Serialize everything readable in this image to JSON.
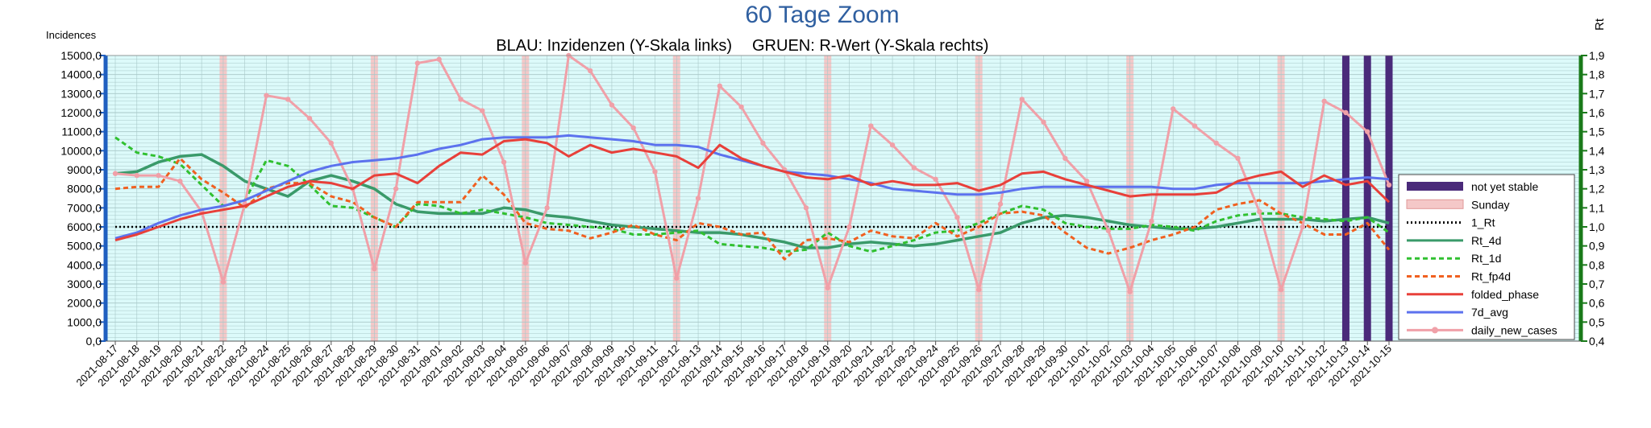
{
  "chart_data": {
    "type": "line",
    "title": "60 Tage Zoom",
    "subtitle_left": "BLAU: Inzidenzen (Y-Skala links)",
    "subtitle_right": "GRUEN: R-Wert (Y-Skala rechts)",
    "ylabel_left": "Incidences",
    "ylabel_right": "Rt",
    "ylim_left": [
      0,
      15000
    ],
    "ylim_right": [
      0.4,
      1.9
    ],
    "yticks_left": [
      "0,0",
      "1000,0",
      "2000,0",
      "3000,0",
      "4000,0",
      "5000,0",
      "6000,0",
      "7000,0",
      "8000,0",
      "9000,0",
      "10000,0",
      "11000,0",
      "12000,0",
      "13000,0",
      "14000,0",
      "15000,0"
    ],
    "yticks_right": [
      "0,4",
      "0,5",
      "0,6",
      "0,7",
      "0,8",
      "0,9",
      "1,0",
      "1,1",
      "1,2",
      "1,3",
      "1,4",
      "1,5",
      "1,6",
      "1,7",
      "1,8",
      "1,9"
    ],
    "grid": true,
    "legend_position": "right",
    "categories": [
      "2021-08-17",
      "2021-08-18",
      "2021-08-19",
      "2021-08-20",
      "2021-08-21",
      "2021-08-22",
      "2021-08-23",
      "2021-08-24",
      "2021-08-25",
      "2021-08-26",
      "2021-08-27",
      "2021-08-28",
      "2021-08-29",
      "2021-08-30",
      "2021-08-31",
      "2021-09-01",
      "2021-09-02",
      "2021-09-03",
      "2021-09-04",
      "2021-09-05",
      "2021-09-06",
      "2021-09-07",
      "2021-09-08",
      "2021-09-09",
      "2021-09-10",
      "2021-09-11",
      "2021-09-12",
      "2021-09-13",
      "2021-09-14",
      "2021-09-15",
      "2021-09-16",
      "2021-09-17",
      "2021-09-18",
      "2021-09-19",
      "2021-09-20",
      "2021-09-21",
      "2021-09-22",
      "2021-09-23",
      "2021-09-24",
      "2021-09-25",
      "2021-09-26",
      "2021-09-27",
      "2021-09-28",
      "2021-09-29",
      "2021-09-30",
      "2021-10-01",
      "2021-10-02",
      "2021-10-03",
      "2021-10-04",
      "2021-10-05",
      "2021-10-06",
      "2021-10-07",
      "2021-10-08",
      "2021-10-09",
      "2021-10-10",
      "2021-10-11",
      "2021-10-12",
      "2021-10-13",
      "2021-10-14",
      "2021-10-15"
    ],
    "sundays": [
      "2021-08-22",
      "2021-08-29",
      "2021-09-05",
      "2021-09-12",
      "2021-09-19",
      "2021-09-26",
      "2021-10-03",
      "2021-10-10"
    ],
    "not_yet_stable": [
      "2021-10-13",
      "2021-10-14",
      "2021-10-15"
    ],
    "series": [
      {
        "name": "daily_new_cases",
        "axis": "left",
        "color": "#f0a0a8",
        "style": "solid-marker",
        "values": [
          8800,
          8700,
          8700,
          8400,
          6800,
          3100,
          7200,
          12900,
          12700,
          11700,
          10400,
          8000,
          3800,
          8000,
          14600,
          14800,
          12700,
          12100,
          9400,
          4100,
          7000,
          15000,
          14200,
          12400,
          11200,
          8900,
          3300,
          7500,
          13400,
          12300,
          10400,
          9000,
          7000,
          2800,
          6000,
          11300,
          10300,
          9100,
          8500,
          6500,
          2700,
          7200,
          12700,
          11500,
          9600,
          8400,
          5800,
          2600,
          6300,
          12200,
          11300,
          10400,
          9600,
          6800,
          2700,
          6000,
          12600,
          12000,
          11000,
          8200
        ]
      },
      {
        "name": "7d_avg",
        "axis": "left",
        "color": "#5c72ee",
        "style": "solid",
        "values": [
          5400,
          5700,
          6200,
          6600,
          6900,
          7100,
          7400,
          7900,
          8400,
          8900,
          9200,
          9400,
          9500,
          9600,
          9800,
          10100,
          10300,
          10600,
          10700,
          10700,
          10700,
          10800,
          10700,
          10600,
          10500,
          10300,
          10300,
          10200,
          9800,
          9500,
          9200,
          8900,
          8800,
          8700,
          8500,
          8300,
          8000,
          7900,
          7800,
          7700,
          7700,
          7800,
          8000,
          8100,
          8100,
          8100,
          8100,
          8100,
          8100,
          8000,
          8000,
          8200,
          8300,
          8300,
          8300,
          8300,
          8400,
          8500,
          8600,
          8500
        ]
      },
      {
        "name": "folded_phase",
        "axis": "left",
        "color": "#e8403a",
        "style": "solid",
        "values": [
          5300,
          5600,
          6000,
          6400,
          6700,
          6900,
          7100,
          7600,
          8100,
          8400,
          8300,
          8000,
          8700,
          8800,
          8300,
          9200,
          9900,
          9800,
          10500,
          10600,
          10400,
          9700,
          10300,
          9900,
          10100,
          9900,
          9700,
          9100,
          10300,
          9600,
          9200,
          8900,
          8600,
          8500,
          8700,
          8200,
          8400,
          8200,
          8200,
          8300,
          7900,
          8200,
          8800,
          8900,
          8500,
          8200,
          7900,
          7600,
          7700,
          7700,
          7700,
          7800,
          8400,
          8700,
          8900,
          8100,
          8700,
          8200,
          8400,
          7300
        ]
      },
      {
        "name": "Rt_4d",
        "axis": "right",
        "color": "#3a9a6a",
        "style": "solid",
        "values": [
          1.28,
          1.29,
          1.34,
          1.37,
          1.38,
          1.32,
          1.24,
          1.2,
          1.16,
          1.24,
          1.27,
          1.24,
          1.2,
          1.12,
          1.08,
          1.07,
          1.07,
          1.07,
          1.1,
          1.09,
          1.06,
          1.05,
          1.03,
          1.01,
          1.0,
          0.99,
          0.98,
          0.97,
          0.97,
          0.96,
          0.94,
          0.92,
          0.89,
          0.89,
          0.91,
          0.92,
          0.91,
          0.9,
          0.91,
          0.93,
          0.95,
          0.97,
          1.02,
          1.05,
          1.06,
          1.05,
          1.03,
          1.01,
          1.0,
          0.99,
          0.99,
          1.0,
          1.02,
          1.04,
          1.04,
          1.04,
          1.03,
          1.04,
          1.05,
          1.02
        ]
      },
      {
        "name": "Rt_1d",
        "axis": "right",
        "color": "#30c030",
        "style": "dashed",
        "values": [
          1.47,
          1.39,
          1.37,
          1.33,
          1.22,
          1.11,
          1.14,
          1.35,
          1.32,
          1.22,
          1.11,
          1.1,
          1.05,
          1.0,
          1.12,
          1.11,
          1.07,
          1.09,
          1.07,
          1.05,
          1.02,
          1.01,
          1.0,
          0.99,
          0.96,
          0.96,
          0.97,
          0.98,
          0.91,
          0.9,
          0.89,
          0.87,
          0.88,
          0.97,
          0.9,
          0.87,
          0.9,
          0.93,
          0.97,
          0.98,
          1.02,
          1.07,
          1.11,
          1.09,
          1.02,
          1.0,
          0.99,
          0.99,
          1.01,
          1.0,
          0.98,
          1.03,
          1.06,
          1.07,
          1.07,
          1.05,
          1.04,
          1.03,
          1.05,
          0.97
        ]
      },
      {
        "name": "Rt_fp4d",
        "axis": "right",
        "color": "#f06020",
        "style": "dashed",
        "values": [
          1.2,
          1.21,
          1.21,
          1.36,
          1.25,
          1.18,
          1.1,
          1.2,
          1.23,
          1.23,
          1.16,
          1.13,
          1.05,
          1.0,
          1.13,
          1.13,
          1.13,
          1.27,
          1.17,
          1.02,
          0.99,
          0.98,
          0.94,
          0.97,
          1.01,
          0.96,
          0.93,
          1.02,
          1.0,
          0.96,
          0.97,
          0.83,
          0.93,
          0.94,
          0.92,
          0.98,
          0.95,
          0.94,
          1.02,
          0.95,
          1.0,
          1.07,
          1.08,
          1.06,
          0.97,
          0.89,
          0.86,
          0.89,
          0.93,
          0.96,
          1.0,
          1.09,
          1.12,
          1.14,
          1.07,
          1.02,
          0.96,
          0.96,
          1.02,
          0.88
        ]
      },
      {
        "name": "1_Rt",
        "axis": "right",
        "color": "#000000",
        "style": "dotted",
        "values": [
          1,
          1,
          1,
          1,
          1,
          1,
          1,
          1,
          1,
          1,
          1,
          1,
          1,
          1,
          1,
          1,
          1,
          1,
          1,
          1,
          1,
          1,
          1,
          1,
          1,
          1,
          1,
          1,
          1,
          1,
          1,
          1,
          1,
          1,
          1,
          1,
          1,
          1,
          1,
          1,
          1,
          1,
          1,
          1,
          1,
          1,
          1,
          1,
          1,
          1,
          1,
          1,
          1,
          1,
          1,
          1,
          1,
          1,
          1,
          1
        ]
      }
    ],
    "legend": [
      "not yet stable",
      "Sunday",
      "1_Rt",
      "Rt_4d",
      "Rt_1d",
      "Rt_fp4d",
      "folded_phase",
      "7d_avg",
      "daily_new_cases"
    ]
  },
  "colors": {
    "plot_bg": "#dcfafa",
    "grid": "#a8c8c8",
    "title": "#2f5fa0",
    "left_axis": "#1f5fc0",
    "right_axis": "#1a7a1a",
    "sunday": "#f4c8c8",
    "not_yet_stable": "#4a2a7a"
  }
}
